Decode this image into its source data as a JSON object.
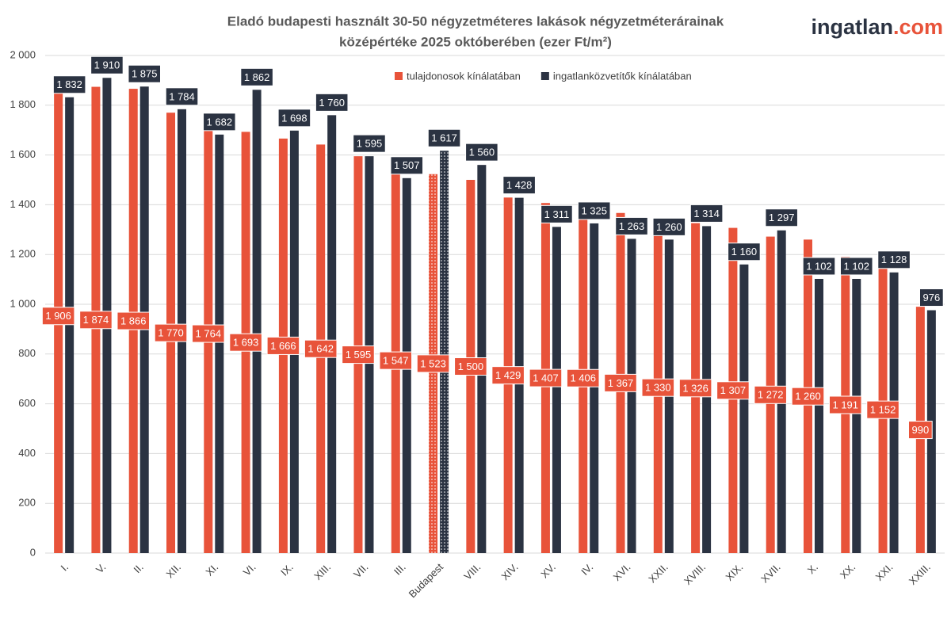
{
  "logo": {
    "name": "ingatlan",
    "suffix": ".com"
  },
  "chart_data": {
    "type": "bar",
    "title": [
      "Eladó budapesti használt 30-50 négyzetméteres lakások négyzetméterárainak",
      "középértéke 2025 októberében (ezer Ft/m²)"
    ],
    "categories": [
      "I.",
      "V.",
      "II.",
      "XII.",
      "XI.",
      "VI.",
      "IX.",
      "XIII.",
      "VII.",
      "III.",
      "Budapest",
      "VIII.",
      "XIV.",
      "XV.",
      "IV.",
      "XVI.",
      "XXII.",
      "XVIII.",
      "XIX.",
      "XVII.",
      "X.",
      "XX.",
      "XXI.",
      "XXIII."
    ],
    "highlight": "Budapest",
    "series": [
      {
        "name": "tulajdonosok kínálatában",
        "color": "#e8533a",
        "values": [
          1906,
          1874,
          1866,
          1770,
          1764,
          1693,
          1666,
          1642,
          1595,
          1547,
          1523,
          1500,
          1429,
          1407,
          1406,
          1367,
          1330,
          1326,
          1307,
          1272,
          1260,
          1191,
          1152,
          990
        ],
        "value_labels": [
          "1 906",
          "1 874",
          "1 866",
          "1 770",
          "1 764",
          "1 693",
          "1 666",
          "1 642",
          "1 595",
          "1 547",
          "1 523",
          "1 500",
          "1 429",
          "1 407",
          "1 406",
          "1 367",
          "1 330",
          "1 326",
          "1 307",
          "1 272",
          "1 260",
          "1 191",
          "1 152",
          "990"
        ]
      },
      {
        "name": "ingatlanközvetítők kínálatában",
        "color": "#2b3342",
        "values": [
          1832,
          1910,
          1875,
          1784,
          1682,
          1862,
          1698,
          1760,
          1595,
          1507,
          1617,
          1560,
          1428,
          1311,
          1325,
          1263,
          1260,
          1314,
          1160,
          1297,
          1102,
          1102,
          1128,
          976
        ],
        "value_labels": [
          "1 832",
          "1 910",
          "1 875",
          "1 784",
          "1 682",
          "1 862",
          "1 698",
          "1 760",
          "1 595",
          "1 507",
          "1 617",
          "1 560",
          "1 428",
          "1 311",
          "1 325",
          "1 263",
          "1 260",
          "1 314",
          "1 160",
          "1 297",
          "1 102",
          "1 102",
          "1 128",
          "976"
        ]
      }
    ],
    "ylim": [
      0,
      2000
    ],
    "yticks": [
      0,
      200,
      400,
      600,
      800,
      {
        "value": 1000,
        "label": "1 000"
      },
      {
        "value": 1200,
        "label": "1 200"
      },
      {
        "value": 1400,
        "label": "1 400"
      },
      {
        "value": 1600,
        "label": "1 600"
      },
      {
        "value": 1800,
        "label": "1 800"
      },
      {
        "value": 2000,
        "label": "2 000"
      }
    ],
    "grid": true,
    "legend": "top"
  }
}
